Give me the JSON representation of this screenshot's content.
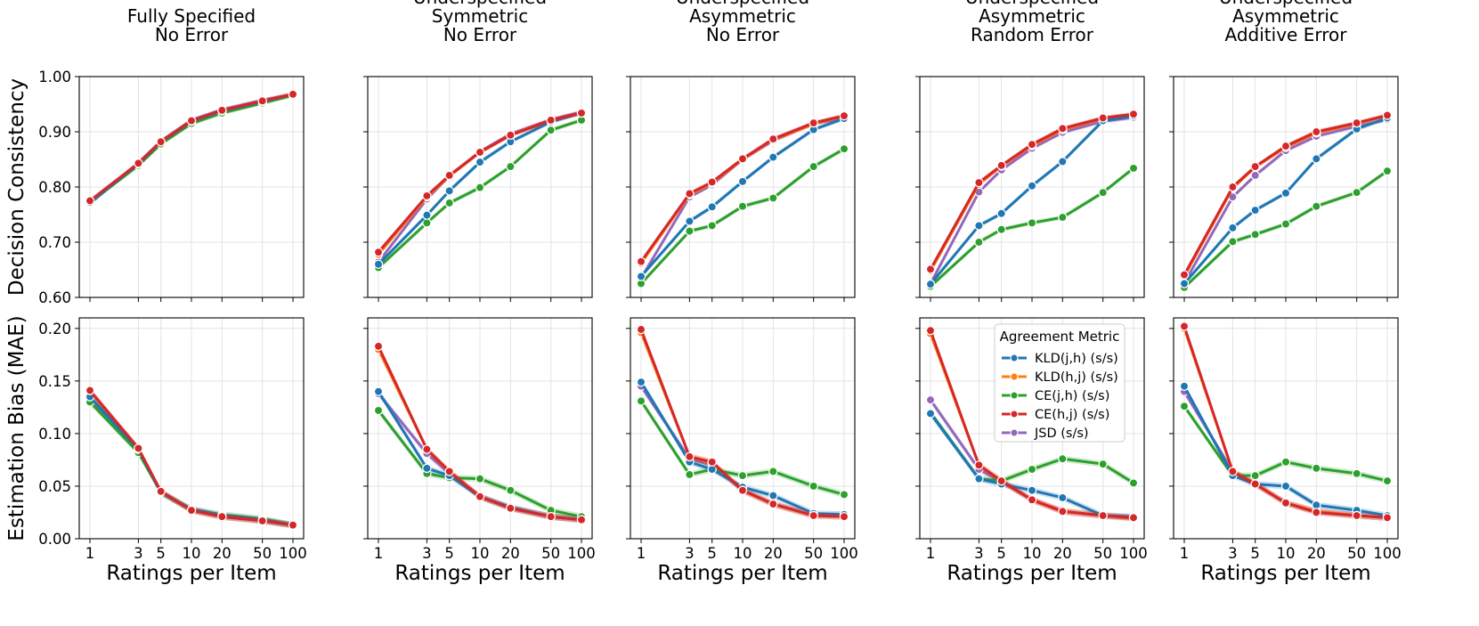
{
  "chart_data": {
    "type": "line",
    "x": [
      1,
      3,
      5,
      10,
      20,
      50,
      100
    ],
    "xscale": "log",
    "xlabel": "Ratings per Item",
    "x_ticks": [
      "1",
      "3",
      "5",
      "10",
      "20",
      "50",
      "100"
    ],
    "rows": [
      {
        "ylabel": "Decision Consistency",
        "ylim": [
          0.6,
          1.0
        ],
        "y_ticks": [
          "0.60",
          "0.70",
          "0.80",
          "0.90",
          "1.00"
        ],
        "y_tick_values": [
          0.6,
          0.7,
          0.8,
          0.9,
          1.0
        ]
      },
      {
        "ylabel": "Estimation Bias (MAE)",
        "ylim": [
          0.0,
          0.21
        ],
        "y_ticks": [
          "0.00",
          "0.05",
          "0.10",
          "0.15",
          "0.20"
        ],
        "y_tick_values": [
          0.0,
          0.05,
          0.1,
          0.15,
          0.2
        ]
      }
    ],
    "grid": true,
    "legend": {
      "title": "Agreement Metric",
      "placement": "top-right",
      "panel": 3,
      "row": 1,
      "entries": [
        {
          "name": "KLD(j,h) (s/s)",
          "color": "#1f77b4"
        },
        {
          "name": "KLD(h,j) (s/s)",
          "color": "#ff7f0e"
        },
        {
          "name": "CE(j,h) (s/s)",
          "color": "#2ca02c"
        },
        {
          "name": "CE(h,j) (s/s)",
          "color": "#d62728"
        },
        {
          "name": "JSD (s/s)",
          "color": "#9467bd"
        }
      ]
    },
    "panels": [
      {
        "title": [
          "Fully Specified",
          "No Error"
        ],
        "consistency": [
          {
            "name": "KLD(j,h) (s/s)",
            "color": "#1f77b4",
            "values": [
              0.772,
              0.842,
              0.882,
              0.919,
              0.938,
              0.955,
              0.968
            ]
          },
          {
            "name": "KLD(h,j) (s/s)",
            "color": "#ff7f0e",
            "values": [
              0.774,
              0.842,
              0.881,
              0.918,
              0.937,
              0.954,
              0.967
            ]
          },
          {
            "name": "CE(j,h) (s/s)",
            "color": "#2ca02c",
            "values": [
              0.772,
              0.839,
              0.878,
              0.915,
              0.934,
              0.952,
              0.966
            ]
          },
          {
            "name": "CE(h,j) (s/s)",
            "color": "#d62728",
            "values": [
              0.775,
              0.843,
              0.882,
              0.92,
              0.939,
              0.956,
              0.968
            ]
          },
          {
            "name": "JSD (s/s)",
            "color": "#9467bd",
            "values": [
              0.77,
              0.844,
              0.883,
              0.921,
              0.94,
              0.957,
              0.968
            ]
          }
        ],
        "bias": [
          {
            "name": "KLD(j,h) (s/s)",
            "color": "#1f77b4",
            "values": [
              0.135,
              0.085,
              0.044,
              0.028,
              0.022,
              0.018,
              0.013
            ]
          },
          {
            "name": "KLD(h,j) (s/s)",
            "color": "#ff7f0e",
            "values": [
              0.14,
              0.086,
              0.044,
              0.027,
              0.021,
              0.017,
              0.013
            ]
          },
          {
            "name": "CE(j,h) (s/s)",
            "color": "#2ca02c",
            "values": [
              0.13,
              0.082,
              0.044,
              0.028,
              0.023,
              0.019,
              0.013
            ]
          },
          {
            "name": "CE(h,j) (s/s)",
            "color": "#d62728",
            "values": [
              0.141,
              0.086,
              0.045,
              0.027,
              0.021,
              0.017,
              0.013
            ]
          },
          {
            "name": "JSD (s/s)",
            "color": "#9467bd",
            "values": [
              0.131,
              0.085,
              0.044,
              0.027,
              0.021,
              0.017,
              0.013
            ]
          }
        ]
      },
      {
        "title": [
          "Underspecified",
          "Symmetric",
          "No Error"
        ],
        "consistency": [
          {
            "name": "KLD(j,h) (s/s)",
            "color": "#1f77b4",
            "values": [
              0.66,
              0.749,
              0.793,
              0.845,
              0.882,
              0.918,
              0.934
            ]
          },
          {
            "name": "KLD(h,j) (s/s)",
            "color": "#ff7f0e",
            "values": [
              0.678,
              0.782,
              0.82,
              0.863,
              0.894,
              0.92,
              0.934
            ]
          },
          {
            "name": "CE(j,h) (s/s)",
            "color": "#2ca02c",
            "values": [
              0.654,
              0.735,
              0.771,
              0.799,
              0.837,
              0.903,
              0.921
            ]
          },
          {
            "name": "CE(h,j) (s/s)",
            "color": "#d62728",
            "values": [
              0.682,
              0.784,
              0.821,
              0.863,
              0.894,
              0.921,
              0.934
            ]
          },
          {
            "name": "JSD (s/s)",
            "color": "#9467bd",
            "values": [
              0.664,
              0.778,
              0.82,
              0.864,
              0.896,
              0.922,
              0.936
            ]
          }
        ],
        "bias": [
          {
            "name": "KLD(j,h) (s/s)",
            "color": "#1f77b4",
            "values": [
              0.14,
              0.067,
              0.06,
              0.04,
              0.03,
              0.021,
              0.018
            ]
          },
          {
            "name": "KLD(h,j) (s/s)",
            "color": "#ff7f0e",
            "values": [
              0.18,
              0.085,
              0.064,
              0.04,
              0.029,
              0.021,
              0.018
            ]
          },
          {
            "name": "CE(j,h) (s/s)",
            "color": "#2ca02c",
            "values": [
              0.122,
              0.062,
              0.058,
              0.057,
              0.046,
              0.027,
              0.021
            ]
          },
          {
            "name": "CE(h,j) (s/s)",
            "color": "#d62728",
            "values": [
              0.183,
              0.085,
              0.064,
              0.04,
              0.029,
              0.021,
              0.018
            ]
          },
          {
            "name": "JSD (s/s)",
            "color": "#9467bd",
            "values": [
              0.138,
              0.081,
              0.062,
              0.04,
              0.029,
              0.021,
              0.018
            ]
          }
        ]
      },
      {
        "title": [
          "Underspecified",
          "Asymmetric",
          "No Error"
        ],
        "consistency": [
          {
            "name": "KLD(j,h) (s/s)",
            "color": "#1f77b4",
            "values": [
              0.638,
              0.738,
              0.764,
              0.81,
              0.854,
              0.904,
              0.924
            ]
          },
          {
            "name": "KLD(h,j) (s/s)",
            "color": "#ff7f0e",
            "values": [
              0.662,
              0.786,
              0.807,
              0.85,
              0.886,
              0.914,
              0.929
            ]
          },
          {
            "name": "CE(j,h) (s/s)",
            "color": "#2ca02c",
            "values": [
              0.625,
              0.72,
              0.73,
              0.765,
              0.78,
              0.837,
              0.869
            ]
          },
          {
            "name": "CE(h,j) (s/s)",
            "color": "#d62728",
            "values": [
              0.665,
              0.788,
              0.809,
              0.851,
              0.887,
              0.916,
              0.929
            ]
          },
          {
            "name": "JSD (s/s)",
            "color": "#9467bd",
            "values": [
              0.635,
              0.782,
              0.804,
              0.85,
              0.884,
              0.915,
              0.924
            ]
          }
        ],
        "bias": [
          {
            "name": "KLD(j,h) (s/s)",
            "color": "#1f77b4",
            "values": [
              0.149,
              0.073,
              0.066,
              0.049,
              0.041,
              0.024,
              0.023
            ]
          },
          {
            "name": "KLD(h,j) (s/s)",
            "color": "#ff7f0e",
            "values": [
              0.196,
              0.078,
              0.072,
              0.046,
              0.033,
              0.022,
              0.021
            ]
          },
          {
            "name": "CE(j,h) (s/s)",
            "color": "#2ca02c",
            "values": [
              0.131,
              0.061,
              0.066,
              0.06,
              0.064,
              0.05,
              0.042
            ]
          },
          {
            "name": "CE(h,j) (s/s)",
            "color": "#d62728",
            "values": [
              0.199,
              0.078,
              0.073,
              0.046,
              0.033,
              0.022,
              0.021
            ]
          },
          {
            "name": "JSD (s/s)",
            "color": "#9467bd",
            "values": [
              0.145,
              0.076,
              0.07,
              0.046,
              0.033,
              0.022,
              0.023
            ]
          }
        ]
      },
      {
        "title": [
          "Underspecified",
          "Asymmetric",
          "Random Error"
        ],
        "consistency": [
          {
            "name": "KLD(j,h) (s/s)",
            "color": "#1f77b4",
            "values": [
              0.624,
              0.73,
              0.752,
              0.802,
              0.846,
              0.92,
              0.929
            ]
          },
          {
            "name": "KLD(h,j) (s/s)",
            "color": "#ff7f0e",
            "values": [
              0.648,
              0.805,
              0.838,
              0.875,
              0.904,
              0.924,
              0.931
            ]
          },
          {
            "name": "CE(j,h) (s/s)",
            "color": "#2ca02c",
            "values": [
              0.62,
              0.7,
              0.723,
              0.735,
              0.745,
              0.79,
              0.834
            ]
          },
          {
            "name": "CE(h,j) (s/s)",
            "color": "#d62728",
            "values": [
              0.651,
              0.808,
              0.839,
              0.877,
              0.906,
              0.925,
              0.932
            ]
          },
          {
            "name": "JSD (s/s)",
            "color": "#9467bd",
            "values": [
              0.625,
              0.791,
              0.831,
              0.87,
              0.899,
              0.919,
              0.926
            ]
          }
        ],
        "bias": [
          {
            "name": "KLD(j,h) (s/s)",
            "color": "#1f77b4",
            "values": [
              0.119,
              0.057,
              0.052,
              0.046,
              0.039,
              0.022,
              0.021
            ]
          },
          {
            "name": "KLD(h,j) (s/s)",
            "color": "#ff7f0e",
            "values": [
              0.195,
              0.07,
              0.055,
              0.037,
              0.026,
              0.022,
              0.019
            ]
          },
          {
            "name": "CE(j,h) (s/s)",
            "color": "#2ca02c",
            "values": [
              0.12,
              0.057,
              0.055,
              0.066,
              0.076,
              0.071,
              0.053
            ]
          },
          {
            "name": "CE(h,j) (s/s)",
            "color": "#d62728",
            "values": [
              0.198,
              0.07,
              0.055,
              0.037,
              0.026,
              0.022,
              0.02
            ]
          },
          {
            "name": "JSD (s/s)",
            "color": "#9467bd",
            "values": [
              0.132,
              0.066,
              0.054,
              0.037,
              0.026,
              0.022,
              0.02
            ]
          }
        ]
      },
      {
        "title": [
          "Underspecified",
          "Asymmetric",
          "Additive Error"
        ],
        "consistency": [
          {
            "name": "KLD(j,h) (s/s)",
            "color": "#1f77b4",
            "values": [
              0.625,
              0.726,
              0.758,
              0.789,
              0.851,
              0.905,
              0.925
            ]
          },
          {
            "name": "KLD(h,j) (s/s)",
            "color": "#ff7f0e",
            "values": [
              0.638,
              0.798,
              0.836,
              0.872,
              0.898,
              0.915,
              0.929
            ]
          },
          {
            "name": "CE(j,h) (s/s)",
            "color": "#2ca02c",
            "values": [
              0.618,
              0.701,
              0.714,
              0.733,
              0.765,
              0.79,
              0.829
            ]
          },
          {
            "name": "CE(h,j) (s/s)",
            "color": "#d62728",
            "values": [
              0.641,
              0.8,
              0.837,
              0.874,
              0.9,
              0.916,
              0.93
            ]
          },
          {
            "name": "JSD (s/s)",
            "color": "#9467bd",
            "values": [
              0.626,
              0.782,
              0.821,
              0.866,
              0.892,
              0.91,
              0.922
            ]
          }
        ],
        "bias": [
          {
            "name": "KLD(j,h) (s/s)",
            "color": "#1f77b4",
            "values": [
              0.145,
              0.06,
              0.052,
              0.05,
              0.032,
              0.027,
              0.022
            ]
          },
          {
            "name": "KLD(h,j) (s/s)",
            "color": "#ff7f0e",
            "values": [
              0.2,
              0.064,
              0.052,
              0.034,
              0.026,
              0.022,
              0.02
            ]
          },
          {
            "name": "CE(j,h) (s/s)",
            "color": "#2ca02c",
            "values": [
              0.126,
              0.06,
              0.06,
              0.073,
              0.067,
              0.062,
              0.055
            ]
          },
          {
            "name": "CE(h,j) (s/s)",
            "color": "#d62728",
            "values": [
              0.202,
              0.064,
              0.052,
              0.034,
              0.025,
              0.022,
              0.02
            ]
          },
          {
            "name": "JSD (s/s)",
            "color": "#9467bd",
            "values": [
              0.14,
              0.064,
              0.052,
              0.034,
              0.026,
              0.022,
              0.02
            ]
          }
        ]
      }
    ]
  }
}
